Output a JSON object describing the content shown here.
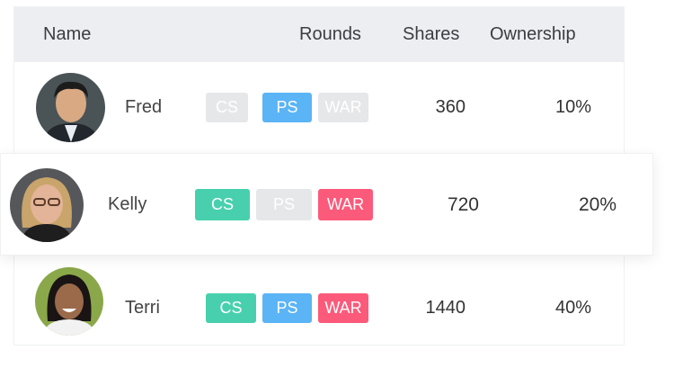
{
  "columns": {
    "name": "Name",
    "rounds": "Rounds",
    "shares": "Shares",
    "ownership": "Ownership"
  },
  "colors": {
    "cs": "#48d0ae",
    "ps": "#5bb4f5",
    "war": "#fc5a7a",
    "inactive": "#e6e7e9"
  },
  "rows": [
    {
      "name": "Fred",
      "shares": "360",
      "ownership": "10%",
      "badges": [
        {
          "label": "CS",
          "active": false
        },
        {
          "label": "PS",
          "active": true
        },
        {
          "label": "WAR",
          "active": false
        }
      ]
    },
    {
      "name": "Kelly",
      "shares": "720",
      "ownership": "20%",
      "badges": [
        {
          "label": "CS",
          "active": true
        },
        {
          "label": "PS",
          "active": false
        },
        {
          "label": "WAR",
          "active": true
        }
      ]
    },
    {
      "name": "Terri",
      "shares": "1440",
      "ownership": "40%",
      "badges": [
        {
          "label": "CS",
          "active": true
        },
        {
          "label": "PS",
          "active": true
        },
        {
          "label": "WAR",
          "active": true
        }
      ]
    }
  ]
}
